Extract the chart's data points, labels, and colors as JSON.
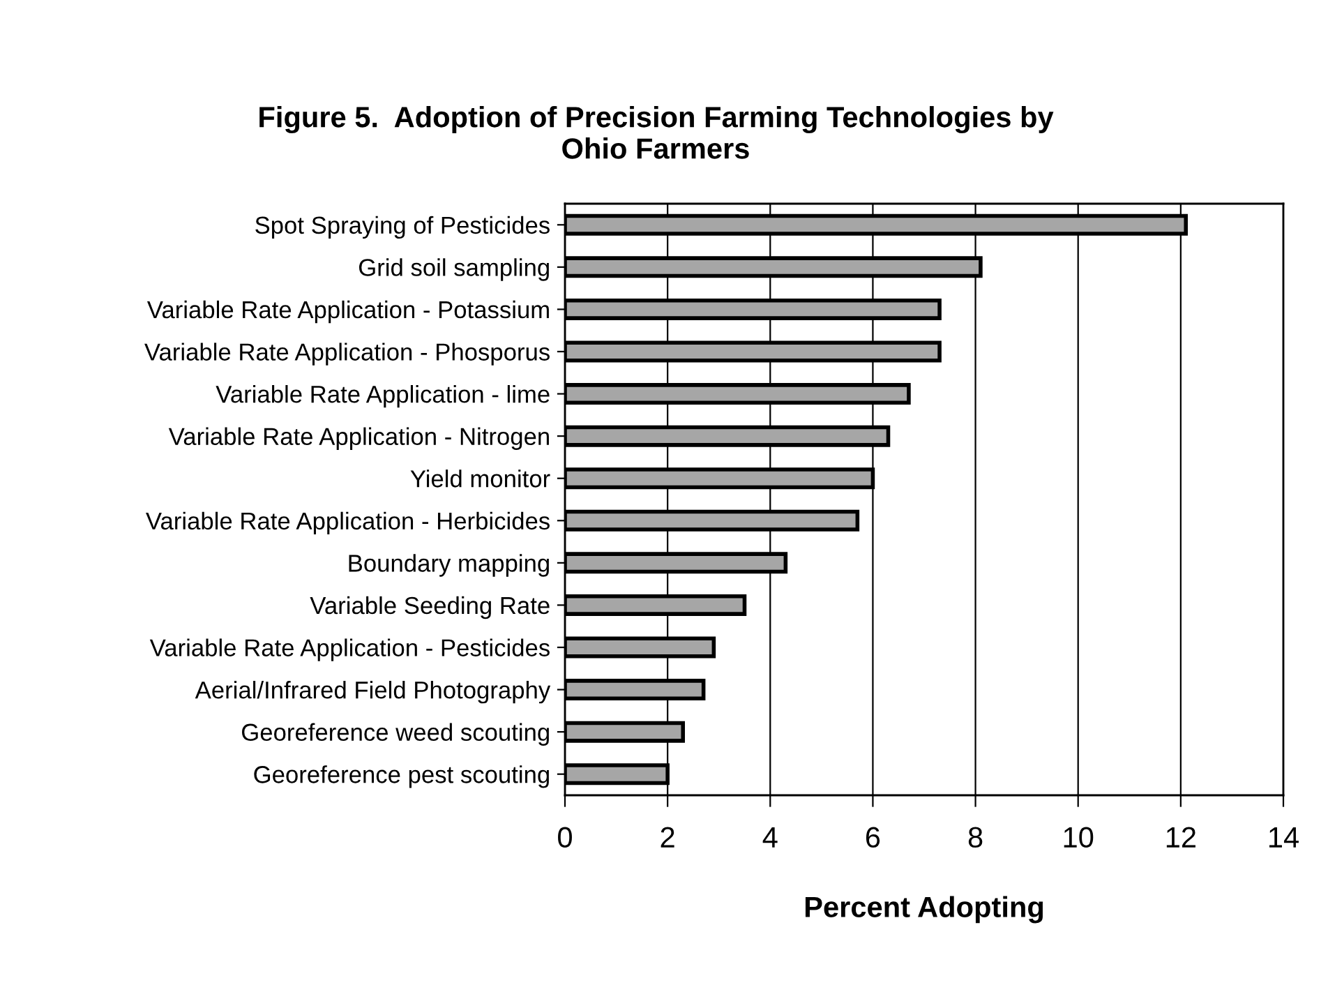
{
  "chart_data": {
    "type": "bar",
    "orientation": "horizontal",
    "title": "Figure 5.  Adoption of Precision Farming Technologies by\nOhio Farmers",
    "xlabel": "Percent Adopting",
    "categories": [
      "Spot Spraying of Pesticides",
      "Grid soil sampling",
      "Variable Rate Application - Potassium",
      "Variable Rate Application - Phosporus",
      "Variable Rate Application - lime",
      "Variable Rate Application - Nitrogen",
      "Yield monitor",
      "Variable Rate Application - Herbicides",
      "Boundary mapping",
      "Variable Seeding Rate",
      "Variable Rate Application - Pesticides",
      "Aerial/Infrared Field Photography",
      "Georeference weed scouting",
      "Georeference pest scouting"
    ],
    "values": [
      12.1,
      8.1,
      7.3,
      7.3,
      6.7,
      6.3,
      6.0,
      5.7,
      4.3,
      3.5,
      2.9,
      2.7,
      2.3,
      2.0
    ],
    "color": "#a6a6a6",
    "xlim": [
      0,
      14
    ],
    "xticks": [
      0,
      2,
      4,
      6,
      8,
      10,
      12,
      14
    ],
    "grid": "x"
  }
}
